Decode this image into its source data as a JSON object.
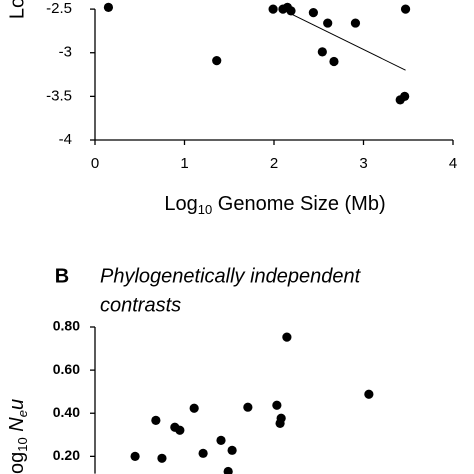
{
  "chart_data": [
    {
      "type": "scatter",
      "y_axis_label": "Lo",
      "x_axis_label": {
        "main": "Log",
        "sub": "10",
        "rest": " Genome Size (Mb)"
      },
      "x": [
        0.15,
        1.36,
        1.99,
        2.1,
        2.15,
        2.19,
        2.44,
        2.6,
        2.54,
        2.67,
        2.91,
        3.47,
        3.41,
        3.46
      ],
      "y": [
        -2.48,
        -3.09,
        -2.5,
        -2.5,
        -2.48,
        -2.52,
        -2.54,
        -2.66,
        -2.99,
        -3.1,
        -2.66,
        -2.5,
        -3.54,
        -3.5
      ],
      "color": "#000000",
      "trendline": {
        "x": [
          2.18,
          3.47
        ],
        "y": [
          -2.55,
          -3.2
        ]
      },
      "xlim": [
        0,
        4
      ],
      "ylim": [
        -4,
        -2.43
      ],
      "xticks": [
        0,
        1,
        2,
        3,
        4
      ],
      "yticks": [
        -2.5,
        -3,
        -3.5,
        -4
      ]
    },
    {
      "type": "scatter",
      "panel_label": "B",
      "title": [
        "Phylogenetically independent",
        "contrasts"
      ],
      "y_axis_label": [
        {
          "text": "og"
        },
        {
          "text": "10",
          "sub": true
        },
        {
          "text": " N",
          "italic": true
        },
        {
          "text": "e",
          "sub": true,
          "italic": true
        },
        {
          "text": "u",
          "italic": true
        }
      ],
      "x": [
        0.112,
        0.17,
        0.187,
        0.223,
        0.237,
        0.277,
        0.302,
        0.352,
        0.372,
        0.383,
        0.427,
        0.508,
        0.517,
        0.52,
        0.536,
        0.765
      ],
      "y": [
        0.2,
        0.367,
        0.191,
        0.335,
        0.321,
        0.423,
        0.214,
        0.274,
        0.13,
        0.228,
        0.428,
        0.437,
        0.353,
        0.377,
        0.753,
        0.488
      ],
      "color": "#000000",
      "xlim": [
        0,
        1
      ],
      "ylim": [
        0.12,
        0.8
      ],
      "yticks": [
        {
          "value": 0.8,
          "label": "0.80"
        },
        {
          "value": 0.6,
          "label": "0.60"
        },
        {
          "value": 0.4,
          "label": "0.40"
        },
        {
          "value": 0.2,
          "label": "0.20"
        }
      ]
    }
  ]
}
